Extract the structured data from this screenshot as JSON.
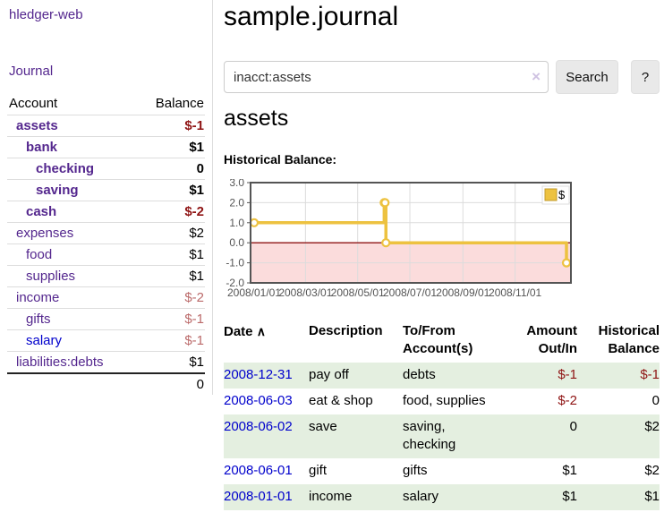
{
  "sidebar": {
    "app_title": "hledger-web",
    "nav": {
      "journal": "Journal"
    },
    "table": {
      "col_account": "Account",
      "col_balance": "Balance",
      "rows": [
        {
          "name": "assets",
          "balance": "$-1"
        },
        {
          "name": "bank",
          "balance": "$1"
        },
        {
          "name": "checking",
          "balance": "0"
        },
        {
          "name": "saving",
          "balance": "$1"
        },
        {
          "name": "cash",
          "balance": "$-2"
        },
        {
          "name": "expenses",
          "balance": "$2"
        },
        {
          "name": "food",
          "balance": "$1"
        },
        {
          "name": "supplies",
          "balance": "$1"
        },
        {
          "name": "income",
          "balance": "$-2"
        },
        {
          "name": "gifts",
          "balance": "$-1"
        },
        {
          "name": "salary",
          "balance": "$-1"
        },
        {
          "name": "liabilities:debts",
          "balance": "$1"
        }
      ],
      "total": "0"
    }
  },
  "main": {
    "page_title": "sample.journal",
    "search": {
      "value": "inacct:assets",
      "clear_icon": "×",
      "search_button": "Search",
      "help_button": "?"
    },
    "account_heading": "assets",
    "chart_heading": "Historical Balance:"
  },
  "chart_data": {
    "type": "line",
    "title": "Historical Balance:",
    "step": true,
    "series": [
      {
        "name": "$",
        "color": "#edc240",
        "x": [
          "2008-01-01",
          "2008-06-01",
          "2008-06-02",
          "2008-06-03",
          "2008-12-31"
        ],
        "y": [
          1,
          2,
          2,
          0,
          -1
        ]
      }
    ],
    "xlim": [
      "2008-01-01",
      "2008-12-31"
    ],
    "ylim": [
      -2.0,
      3.0
    ],
    "yticks": [
      "3.0",
      "2.0",
      "1.0",
      "0.0",
      "-1.0",
      "-2.0"
    ],
    "xticks": [
      "2008/01/01",
      "2008/03/01",
      "2008/05/01",
      "2008/07/01",
      "2008/09/01",
      "2008/11/01"
    ],
    "grid": true,
    "legend": {
      "label": "$",
      "position": "top-right"
    },
    "negative_region_color": "#fbdcdc",
    "zero_line_color": "#8f1414",
    "grid_color": "#dcdcdc",
    "axis_text_color": "#545454",
    "border_color": "#545454"
  },
  "register": {
    "headers": {
      "date": "Date",
      "sort_icon": "∧",
      "description": "Description",
      "account": "To/From Account(s)",
      "amount": "Amount Out/In",
      "balance": "Historical Balance"
    },
    "rows": [
      {
        "date": "2008-12-31",
        "description": "pay off",
        "accounts": "debts",
        "amount": "$-1",
        "balance": "$-1"
      },
      {
        "date": "2008-06-03",
        "description": "eat & shop",
        "accounts": "food, supplies",
        "amount": "$-2",
        "balance": "0"
      },
      {
        "date": "2008-06-02",
        "description": "save",
        "accounts": "saving, checking",
        "amount": "0",
        "balance": "$2"
      },
      {
        "date": "2008-06-01",
        "description": "gift",
        "accounts": "gifts",
        "amount": "$1",
        "balance": "$2"
      },
      {
        "date": "2008-01-01",
        "description": "income",
        "accounts": "salary",
        "amount": "$1",
        "balance": "$1"
      }
    ]
  },
  "colors": {
    "link_purple": "#54278e",
    "link_blue": "#0000cc",
    "negative_strong": "#8f1414",
    "negative_soft": "#bb6a6a",
    "row_stripe_green": "#e4efe0",
    "series_yellow": "#edc240"
  }
}
